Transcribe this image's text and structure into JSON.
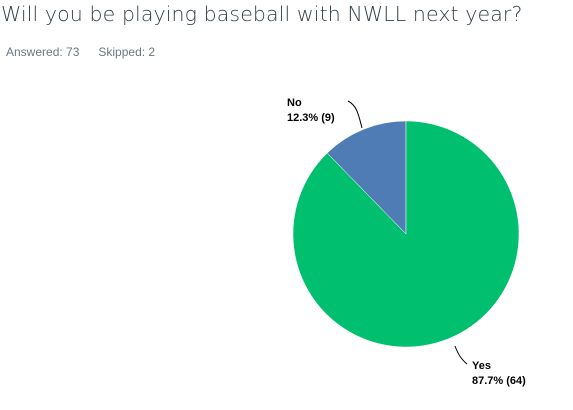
{
  "question": {
    "title": "Will you be playing baseball with NWLL next year?",
    "answered_label": "Answered: 73",
    "skipped_label": "Skipped: 2"
  },
  "colors": {
    "yes": "#00bf6f",
    "no": "#507cb6",
    "title": "#333e48",
    "stats": "#6b787f"
  },
  "chart_data": {
    "type": "pie",
    "title": "",
    "slices": [
      {
        "label": "Yes",
        "percent": 87.7,
        "count": 64,
        "value_label": "87.7% (64)",
        "color": "#00bf6f"
      },
      {
        "label": "No",
        "percent": 12.3,
        "count": 9,
        "value_label": "12.3% (9)",
        "color": "#507cb6"
      }
    ],
    "legend": "none",
    "grid": false
  }
}
